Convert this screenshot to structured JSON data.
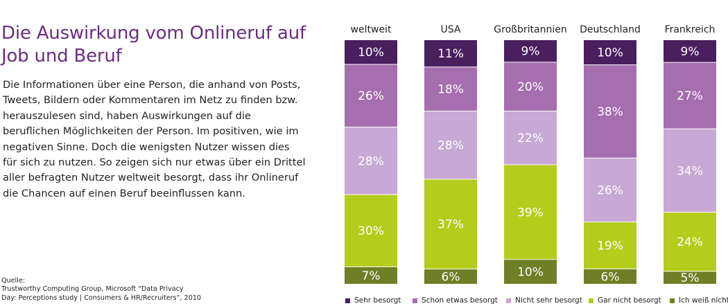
{
  "article": {
    "title_line1": "Die Auswirkung vom Onlineruf auf",
    "title_line2": "Job und Beruf",
    "body": "Die Informationen über eine Person, die anhand von Posts, Tweets, Bildern oder Kommentaren im Netz zu finden bzw. herauszulesen sind, haben Auswirkungen auf die beruflichen Möglichkeiten der Person. Im positiven, wie im negativen Sinne. Doch die wenigsten Nutzer wissen dies für sich zu nutzen. So zeigen sich nur etwas über ein Drittel aller befragten Nutzer weltweit besorgt, dass ihr Onlineruf die Chancen auf einen Beruf beeinflussen kann.",
    "source_label": "Quelle:",
    "source_line1": "Trustworthy Computing Group, Microsoft “Data Privacy",
    "source_line2": "Day: Perceptions study | Consumers & HR/Recruiters“, 2010"
  },
  "chart_data": {
    "type": "bar",
    "stacked": true,
    "normalized_percent": true,
    "categories": [
      "weltweit",
      "USA",
      "Großbritannien",
      "Deutschland",
      "Frankreich"
    ],
    "series": [
      {
        "name": "Sehr besorgt",
        "color": "#4a1f5e",
        "values": [
          10,
          11,
          9,
          10,
          9
        ]
      },
      {
        "name": "Schon etwas besorgt",
        "color": "#a56eaf",
        "values": [
          26,
          18,
          20,
          38,
          27
        ]
      },
      {
        "name": "Nicht sehr besorgt",
        "color": "#c8a8d4",
        "values": [
          28,
          28,
          22,
          26,
          34
        ]
      },
      {
        "name": "Gar nicht besorgt",
        "color": "#b4cc1c",
        "values": [
          30,
          37,
          39,
          19,
          24
        ]
      },
      {
        "name": "Ich weiß nicht",
        "color": "#6f7f25",
        "values": [
          7,
          6,
          10,
          6,
          5
        ]
      }
    ],
    "legend_position": "bottom",
    "value_suffix": "%"
  }
}
